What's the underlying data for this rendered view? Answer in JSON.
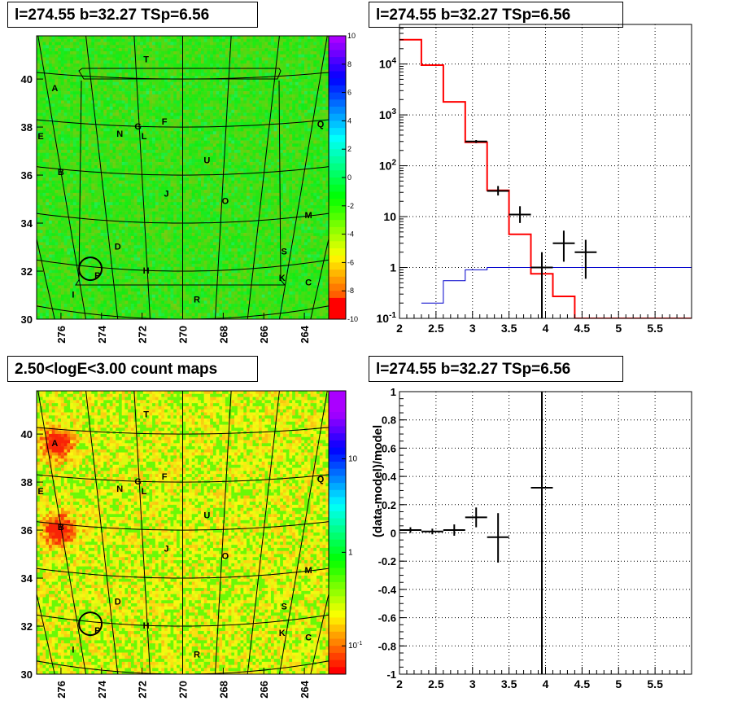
{
  "panels": {
    "p1": {
      "title": "l=274.55 b=32.27 TSp=6.56"
    },
    "p2": {
      "title": "l=274.55 b=32.27 TSp=6.56"
    },
    "p3": {
      "title": "2.50<logE<3.00 count maps"
    },
    "p4": {
      "title": "l=274.55 b=32.27 TSp=6.56"
    }
  },
  "colors": {
    "model": "#ff0000",
    "background": "#0000cc",
    "data": "#000000"
  },
  "chart_data": [
    {
      "type": "heatmap",
      "title": "l=274.55 b=32.27 TSp=6.56",
      "xlim": [
        277.2,
        262.8
      ],
      "ylim": [
        30,
        41.8
      ],
      "xticks": [
        276,
        274,
        272,
        270,
        268,
        266,
        264
      ],
      "yticks": [
        30,
        32,
        34,
        36,
        38,
        40
      ],
      "colorbar": {
        "scale": "linear",
        "range": [
          -10,
          10
        ],
        "ticks": [
          10,
          8,
          6,
          4,
          2,
          0,
          -2,
          -4,
          -6,
          -8,
          -10
        ]
      },
      "sources": [
        {
          "name": "T",
          "l": 271.8,
          "b": 40.7
        },
        {
          "name": "A",
          "l": 276.3,
          "b": 39.5
        },
        {
          "name": "E",
          "l": 277.0,
          "b": 37.5
        },
        {
          "name": "N",
          "l": 273.1,
          "b": 37.6
        },
        {
          "name": "G",
          "l": 272.2,
          "b": 37.9
        },
        {
          "name": "L",
          "l": 271.9,
          "b": 37.5
        },
        {
          "name": "F",
          "l": 270.9,
          "b": 38.1
        },
        {
          "name": "Q",
          "l": 263.2,
          "b": 38.0
        },
        {
          "name": "B",
          "l": 276.0,
          "b": 36.0
        },
        {
          "name": "U",
          "l": 268.8,
          "b": 36.5
        },
        {
          "name": "J",
          "l": 270.8,
          "b": 35.1
        },
        {
          "name": "O",
          "l": 267.9,
          "b": 34.8
        },
        {
          "name": "M",
          "l": 263.8,
          "b": 34.2
        },
        {
          "name": "D",
          "l": 273.2,
          "b": 32.9
        },
        {
          "name": "S",
          "l": 265.0,
          "b": 32.7
        },
        {
          "name": "H",
          "l": 271.8,
          "b": 31.9
        },
        {
          "name": "P",
          "l": 274.2,
          "b": 31.7
        },
        {
          "name": "K",
          "l": 265.1,
          "b": 31.6
        },
        {
          "name": "C",
          "l": 263.8,
          "b": 31.4
        },
        {
          "name": "I",
          "l": 275.4,
          "b": 30.9
        },
        {
          "name": "R",
          "l": 269.3,
          "b": 30.7
        }
      ],
      "marker": {
        "l": 274.55,
        "b": 32.1
      }
    },
    {
      "type": "line",
      "title": "l=274.55 b=32.27 TSp=6.56",
      "xlim": [
        2,
        6
      ],
      "ylim": [
        0.1,
        60000
      ],
      "yscale": "log",
      "xticks": [
        2,
        2.5,
        3,
        3.5,
        4,
        4.5,
        5,
        5.5
      ],
      "yticks": [
        "10^-1",
        "1",
        "10",
        "10^2",
        "10^3",
        "10^4"
      ],
      "grid": true,
      "series": [
        {
          "style": "step",
          "color": "#ff0000",
          "edges": [
            2.0,
            2.3,
            2.6,
            2.9,
            3.2,
            3.5,
            3.8,
            4.1,
            4.4,
            6.0
          ],
          "values": [
            30000,
            9500,
            1800,
            290,
            33,
            4.5,
            0.75,
            0.27,
            0.1
          ]
        },
        {
          "style": "step",
          "color": "#0000cc",
          "edges": [
            2.3,
            2.6,
            2.9,
            3.2,
            3.5,
            3.8,
            6.0
          ],
          "values": [
            0.2,
            0.55,
            0.9,
            1.0,
            1.0,
            1.0
          ]
        },
        {
          "style": "errorbar",
          "color": "#000000",
          "x": [
            3.05,
            3.35,
            3.65,
            3.95,
            4.25,
            4.55
          ],
          "xerr": [
            0.15,
            0.15,
            0.15,
            0.15,
            0.15,
            0.15
          ],
          "y": [
            300,
            32,
            11,
            1.0,
            3.0,
            2.0
          ],
          "ylow": [
            280,
            26,
            7.5,
            0.1,
            1.3,
            0.6
          ],
          "yhigh": [
            320,
            40,
            16,
            2.0,
            5.3,
            3.5
          ]
        }
      ]
    },
    {
      "type": "heatmap",
      "title": "2.50<logE<3.00 count maps",
      "xlim": [
        277.2,
        262.8
      ],
      "ylim": [
        30,
        41.8
      ],
      "xticks": [
        276,
        274,
        272,
        270,
        268,
        266,
        264
      ],
      "yticks": [
        30,
        32,
        34,
        36,
        38,
        40
      ],
      "colorbar": {
        "scale": "log",
        "ticks": [
          "10",
          "1",
          "10^-1"
        ]
      },
      "hotspots": [
        {
          "l": 276.2,
          "b": 39.6
        },
        {
          "l": 276.1,
          "b": 36.0
        }
      ],
      "sources": [
        {
          "name": "T",
          "l": 271.8,
          "b": 40.7
        },
        {
          "name": "A",
          "l": 276.3,
          "b": 39.5
        },
        {
          "name": "E",
          "l": 277.0,
          "b": 37.5
        },
        {
          "name": "N",
          "l": 273.1,
          "b": 37.6
        },
        {
          "name": "G",
          "l": 272.2,
          "b": 37.9
        },
        {
          "name": "L",
          "l": 271.9,
          "b": 37.5
        },
        {
          "name": "F",
          "l": 270.9,
          "b": 38.1
        },
        {
          "name": "Q",
          "l": 263.2,
          "b": 38.0
        },
        {
          "name": "B",
          "l": 276.0,
          "b": 36.0
        },
        {
          "name": "U",
          "l": 268.8,
          "b": 36.5
        },
        {
          "name": "J",
          "l": 270.8,
          "b": 35.1
        },
        {
          "name": "O",
          "l": 267.9,
          "b": 34.8
        },
        {
          "name": "M",
          "l": 263.8,
          "b": 34.2
        },
        {
          "name": "D",
          "l": 273.2,
          "b": 32.9
        },
        {
          "name": "S",
          "l": 265.0,
          "b": 32.7
        },
        {
          "name": "H",
          "l": 271.8,
          "b": 31.9
        },
        {
          "name": "P",
          "l": 274.2,
          "b": 31.7
        },
        {
          "name": "K",
          "l": 265.1,
          "b": 31.6
        },
        {
          "name": "C",
          "l": 263.8,
          "b": 31.4
        },
        {
          "name": "I",
          "l": 275.4,
          "b": 30.9
        },
        {
          "name": "R",
          "l": 269.3,
          "b": 30.7
        }
      ],
      "marker": {
        "l": 274.55,
        "b": 32.1
      }
    },
    {
      "type": "scatter",
      "title": "l=274.55 b=32.27 TSp=6.56",
      "ylabel": "(data-model)/model",
      "xlim": [
        2,
        6
      ],
      "ylim": [
        -1,
        1
      ],
      "xticks": [
        2,
        2.5,
        3,
        3.5,
        4,
        4.5,
        5,
        5.5
      ],
      "yticks": [
        -1,
        -0.8,
        -0.6,
        -0.4,
        -0.2,
        0,
        0.2,
        0.4,
        0.6,
        0.8,
        1
      ],
      "grid": true,
      "points": [
        {
          "x": 2.15,
          "xerr": 0.15,
          "y": 0.02,
          "ylow": 0.0,
          "yhigh": 0.04
        },
        {
          "x": 2.45,
          "xerr": 0.15,
          "y": 0.01,
          "ylow": -0.01,
          "yhigh": 0.03
        },
        {
          "x": 2.75,
          "xerr": 0.15,
          "y": 0.02,
          "ylow": -0.02,
          "yhigh": 0.06
        },
        {
          "x": 3.05,
          "xerr": 0.15,
          "y": 0.11,
          "ylow": 0.04,
          "yhigh": 0.18
        },
        {
          "x": 3.35,
          "xerr": 0.15,
          "y": -0.03,
          "ylow": -0.21,
          "yhigh": 0.14
        },
        {
          "x": 3.95,
          "xerr": 0.15,
          "y": 0.32,
          "ylow": -1.0,
          "yhigh": 1.0
        }
      ]
    }
  ]
}
